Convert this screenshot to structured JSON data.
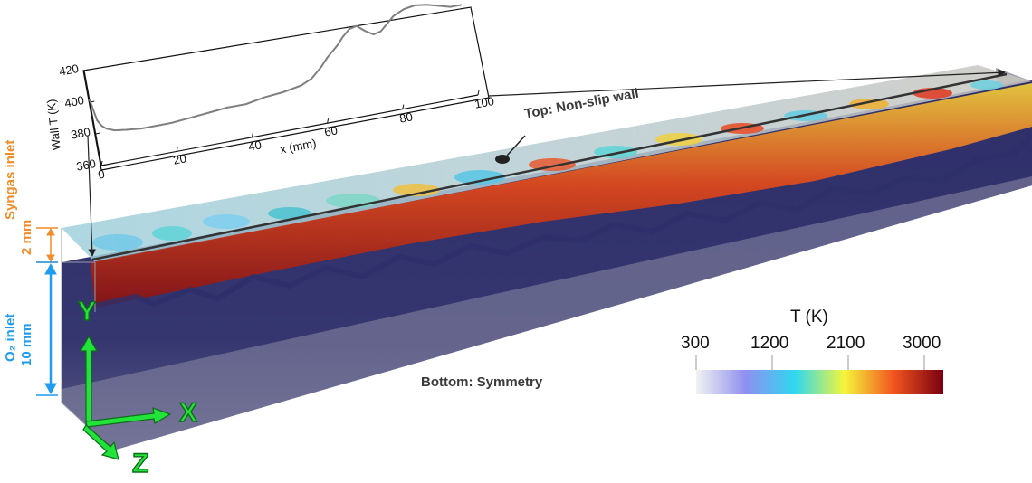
{
  "inset_chart": {
    "ylabel": "Wall T (K)",
    "xlabel": "x (mm)",
    "xticks": [
      "0",
      "20",
      "40",
      "60",
      "80",
      "100"
    ],
    "yticks": [
      "360",
      "380",
      "400",
      "420"
    ],
    "chart_data": {
      "type": "line",
      "xlim": [
        0,
        100
      ],
      "ylim": [
        360,
        420
      ],
      "x": [
        0,
        1,
        2,
        3,
        5,
        8,
        12,
        16,
        20,
        25,
        30,
        35,
        40,
        45,
        50,
        55,
        58,
        61,
        63,
        66,
        68,
        70,
        72,
        74,
        76,
        78,
        80,
        82,
        85,
        88,
        91,
        94,
        97,
        100
      ],
      "y": [
        402,
        388,
        384,
        382,
        380,
        379,
        378,
        378,
        378,
        379,
        380,
        381,
        381,
        383,
        384,
        386,
        389,
        395,
        400,
        406,
        411,
        415,
        416,
        412,
        409,
        410,
        414,
        418,
        421,
        422,
        421,
        419,
        417,
        417
      ],
      "color": "#808080"
    }
  },
  "labels": {
    "top_wall": "Top: Non-slip wall",
    "bottom": "Bottom: Symmetry",
    "syngas_inlet": "Syngas inlet",
    "syngas_dim": "2 mm",
    "o2_inlet": "O₂ inlet",
    "o2_dim": "10 mm"
  },
  "axes_triad": {
    "x": "X",
    "y": "Y",
    "z": "Z",
    "color": "#22e33a"
  },
  "colorbar": {
    "title": "T (K)",
    "ticks": [
      "300",
      "1200",
      "2100",
      "3000"
    ],
    "colors": [
      "#f2f2f2",
      "#8f8ff0",
      "#2fd8f0",
      "#f5f53a",
      "#f2541f",
      "#7a0010"
    ]
  },
  "colors": {
    "syngas": "#f28c28",
    "o2": "#1f9cf0",
    "domain": "#2e2f6a"
  }
}
